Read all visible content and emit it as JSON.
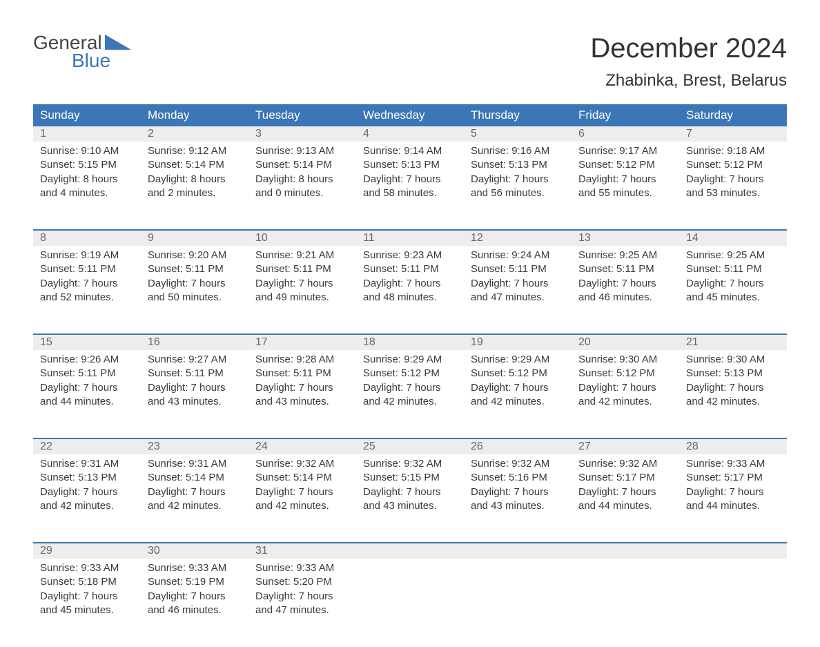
{
  "logo": {
    "line1": "General",
    "line2": "Blue"
  },
  "title": "December 2024",
  "subtitle": "Zhabinka, Brest, Belarus",
  "colors": {
    "header_bg": "#3b76b7",
    "header_text": "#ffffff",
    "daynum_bg": "#ededed",
    "daynum_text": "#666666",
    "body_text": "#3a3a3a",
    "page_bg": "#ffffff",
    "rule": "#3b76b7"
  },
  "columns": [
    "Sunday",
    "Monday",
    "Tuesday",
    "Wednesday",
    "Thursday",
    "Friday",
    "Saturday"
  ],
  "weeks": [
    [
      {
        "n": "1",
        "sr": "9:10 AM",
        "ss": "5:15 PM",
        "dl": "8 hours and 4 minutes."
      },
      {
        "n": "2",
        "sr": "9:12 AM",
        "ss": "5:14 PM",
        "dl": "8 hours and 2 minutes."
      },
      {
        "n": "3",
        "sr": "9:13 AM",
        "ss": "5:14 PM",
        "dl": "8 hours and 0 minutes."
      },
      {
        "n": "4",
        "sr": "9:14 AM",
        "ss": "5:13 PM",
        "dl": "7 hours and 58 minutes."
      },
      {
        "n": "5",
        "sr": "9:16 AM",
        "ss": "5:13 PM",
        "dl": "7 hours and 56 minutes."
      },
      {
        "n": "6",
        "sr": "9:17 AM",
        "ss": "5:12 PM",
        "dl": "7 hours and 55 minutes."
      },
      {
        "n": "7",
        "sr": "9:18 AM",
        "ss": "5:12 PM",
        "dl": "7 hours and 53 minutes."
      }
    ],
    [
      {
        "n": "8",
        "sr": "9:19 AM",
        "ss": "5:11 PM",
        "dl": "7 hours and 52 minutes."
      },
      {
        "n": "9",
        "sr": "9:20 AM",
        "ss": "5:11 PM",
        "dl": "7 hours and 50 minutes."
      },
      {
        "n": "10",
        "sr": "9:21 AM",
        "ss": "5:11 PM",
        "dl": "7 hours and 49 minutes."
      },
      {
        "n": "11",
        "sr": "9:23 AM",
        "ss": "5:11 PM",
        "dl": "7 hours and 48 minutes."
      },
      {
        "n": "12",
        "sr": "9:24 AM",
        "ss": "5:11 PM",
        "dl": "7 hours and 47 minutes."
      },
      {
        "n": "13",
        "sr": "9:25 AM",
        "ss": "5:11 PM",
        "dl": "7 hours and 46 minutes."
      },
      {
        "n": "14",
        "sr": "9:25 AM",
        "ss": "5:11 PM",
        "dl": "7 hours and 45 minutes."
      }
    ],
    [
      {
        "n": "15",
        "sr": "9:26 AM",
        "ss": "5:11 PM",
        "dl": "7 hours and 44 minutes."
      },
      {
        "n": "16",
        "sr": "9:27 AM",
        "ss": "5:11 PM",
        "dl": "7 hours and 43 minutes."
      },
      {
        "n": "17",
        "sr": "9:28 AM",
        "ss": "5:11 PM",
        "dl": "7 hours and 43 minutes."
      },
      {
        "n": "18",
        "sr": "9:29 AM",
        "ss": "5:12 PM",
        "dl": "7 hours and 42 minutes."
      },
      {
        "n": "19",
        "sr": "9:29 AM",
        "ss": "5:12 PM",
        "dl": "7 hours and 42 minutes."
      },
      {
        "n": "20",
        "sr": "9:30 AM",
        "ss": "5:12 PM",
        "dl": "7 hours and 42 minutes."
      },
      {
        "n": "21",
        "sr": "9:30 AM",
        "ss": "5:13 PM",
        "dl": "7 hours and 42 minutes."
      }
    ],
    [
      {
        "n": "22",
        "sr": "9:31 AM",
        "ss": "5:13 PM",
        "dl": "7 hours and 42 minutes."
      },
      {
        "n": "23",
        "sr": "9:31 AM",
        "ss": "5:14 PM",
        "dl": "7 hours and 42 minutes."
      },
      {
        "n": "24",
        "sr": "9:32 AM",
        "ss": "5:14 PM",
        "dl": "7 hours and 42 minutes."
      },
      {
        "n": "25",
        "sr": "9:32 AM",
        "ss": "5:15 PM",
        "dl": "7 hours and 43 minutes."
      },
      {
        "n": "26",
        "sr": "9:32 AM",
        "ss": "5:16 PM",
        "dl": "7 hours and 43 minutes."
      },
      {
        "n": "27",
        "sr": "9:32 AM",
        "ss": "5:17 PM",
        "dl": "7 hours and 44 minutes."
      },
      {
        "n": "28",
        "sr": "9:33 AM",
        "ss": "5:17 PM",
        "dl": "7 hours and 44 minutes."
      }
    ],
    [
      {
        "n": "29",
        "sr": "9:33 AM",
        "ss": "5:18 PM",
        "dl": "7 hours and 45 minutes."
      },
      {
        "n": "30",
        "sr": "9:33 AM",
        "ss": "5:19 PM",
        "dl": "7 hours and 46 minutes."
      },
      {
        "n": "31",
        "sr": "9:33 AM",
        "ss": "5:20 PM",
        "dl": "7 hours and 47 minutes."
      },
      null,
      null,
      null,
      null
    ]
  ],
  "labels": {
    "sunrise": "Sunrise:",
    "sunset": "Sunset:",
    "daylight": "Daylight:"
  }
}
